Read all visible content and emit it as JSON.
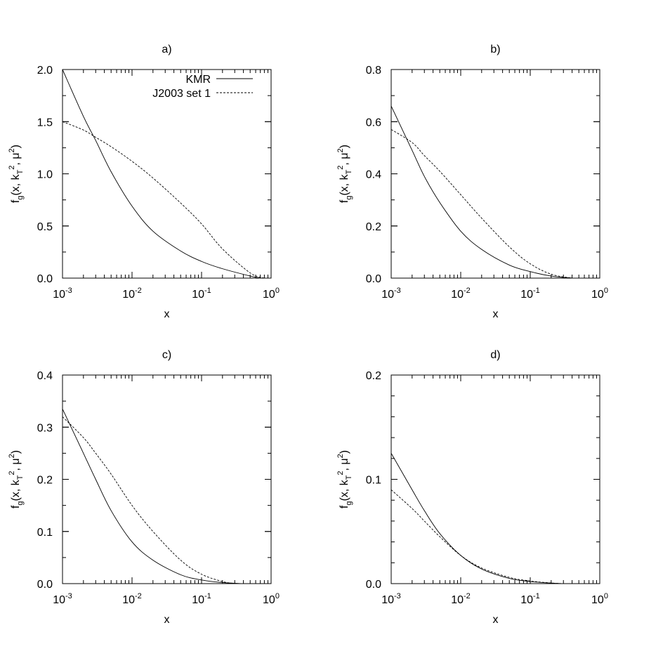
{
  "chart_data": [
    {
      "type": "line",
      "panel_label": "a)",
      "xlabel": "x",
      "ylabel": "f_g(x, k_T^2, μ^2)",
      "x_scale": "log",
      "xlim": [
        0.001,
        1
      ],
      "ylim": [
        0,
        2.0
      ],
      "y_ticks": [
        "0.0",
        "0.5",
        "1.0",
        "1.5",
        "2.0"
      ],
      "x_ticks": [
        "10^-3",
        "10^-2",
        "10^-1",
        "10^0"
      ],
      "legend": {
        "position": "top-right",
        "entries": [
          "KMR",
          "J2003 set 1"
        ]
      },
      "series": [
        {
          "name": "KMR",
          "style": "solid",
          "x": [
            0.001,
            0.002,
            0.003,
            0.005,
            0.01,
            0.02,
            0.05,
            0.1,
            0.2,
            0.5,
            0.7
          ],
          "y": [
            2.0,
            1.55,
            1.32,
            1.02,
            0.69,
            0.45,
            0.26,
            0.16,
            0.09,
            0.02,
            0.0
          ]
        },
        {
          "name": "J2003 set 1",
          "style": "dashed",
          "x": [
            0.001,
            0.002,
            0.003,
            0.005,
            0.01,
            0.02,
            0.05,
            0.1,
            0.2,
            0.5,
            0.8
          ],
          "y": [
            1.5,
            1.42,
            1.35,
            1.26,
            1.12,
            0.96,
            0.72,
            0.52,
            0.28,
            0.05,
            0.0
          ]
        }
      ]
    },
    {
      "type": "line",
      "panel_label": "b)",
      "xlabel": "x",
      "ylabel": "f_g(x, k_T^2, μ^2)",
      "x_scale": "log",
      "xlim": [
        0.001,
        1
      ],
      "ylim": [
        0,
        0.8
      ],
      "y_ticks": [
        "0.0",
        "0.2",
        "0.4",
        "0.6",
        "0.8"
      ],
      "x_ticks": [
        "10^-3",
        "10^-2",
        "10^-1",
        "10^0"
      ],
      "series": [
        {
          "name": "KMR",
          "style": "solid",
          "x": [
            0.001,
            0.002,
            0.003,
            0.005,
            0.01,
            0.02,
            0.05,
            0.1,
            0.2,
            0.4
          ],
          "y": [
            0.66,
            0.49,
            0.39,
            0.29,
            0.18,
            0.11,
            0.05,
            0.025,
            0.008,
            0.0
          ]
        },
        {
          "name": "J2003 set 1",
          "style": "dashed",
          "x": [
            0.001,
            0.002,
            0.003,
            0.005,
            0.01,
            0.02,
            0.05,
            0.1,
            0.2,
            0.4
          ],
          "y": [
            0.57,
            0.52,
            0.47,
            0.41,
            0.32,
            0.23,
            0.12,
            0.055,
            0.015,
            0.0
          ]
        }
      ]
    },
    {
      "type": "line",
      "panel_label": "c)",
      "xlabel": "x",
      "ylabel": "f_g(x, k_T^2, μ^2)",
      "x_scale": "log",
      "xlim": [
        0.001,
        1
      ],
      "ylim": [
        0,
        0.4
      ],
      "y_ticks": [
        "0.0",
        "0.1",
        "0.2",
        "0.3",
        "0.4"
      ],
      "x_ticks": [
        "10^-3",
        "10^-2",
        "10^-1",
        "10^0"
      ],
      "series": [
        {
          "name": "KMR",
          "style": "solid",
          "x": [
            0.001,
            0.002,
            0.003,
            0.005,
            0.01,
            0.02,
            0.05,
            0.1,
            0.2,
            0.4
          ],
          "y": [
            0.335,
            0.25,
            0.2,
            0.14,
            0.08,
            0.045,
            0.017,
            0.007,
            0.002,
            0.0
          ]
        },
        {
          "name": "J2003 set 1",
          "style": "dashed",
          "x": [
            0.001,
            0.002,
            0.003,
            0.005,
            0.01,
            0.02,
            0.05,
            0.1,
            0.2,
            0.3
          ],
          "y": [
            0.32,
            0.28,
            0.25,
            0.21,
            0.15,
            0.1,
            0.045,
            0.018,
            0.004,
            0.0
          ]
        }
      ]
    },
    {
      "type": "line",
      "panel_label": "d)",
      "xlabel": "x",
      "ylabel": "f_g(x, k_T^2, μ^2)",
      "x_scale": "log",
      "xlim": [
        0.001,
        1
      ],
      "ylim": [
        0,
        0.2
      ],
      "y_ticks": [
        "0.0",
        "0.1",
        "0.2"
      ],
      "x_ticks": [
        "10^-3",
        "10^-2",
        "10^-1",
        "10^0"
      ],
      "series": [
        {
          "name": "KMR",
          "style": "solid",
          "x": [
            0.001,
            0.002,
            0.003,
            0.005,
            0.01,
            0.02,
            0.05,
            0.1,
            0.2,
            0.3
          ],
          "y": [
            0.125,
            0.09,
            0.07,
            0.048,
            0.027,
            0.014,
            0.005,
            0.002,
            0.0005,
            0.0
          ]
        },
        {
          "name": "J2003 set 1",
          "style": "dashed",
          "x": [
            0.001,
            0.002,
            0.003,
            0.005,
            0.01,
            0.02,
            0.05,
            0.1,
            0.2,
            0.3
          ],
          "y": [
            0.09,
            0.072,
            0.06,
            0.045,
            0.027,
            0.015,
            0.006,
            0.0025,
            0.0006,
            0.0
          ]
        }
      ]
    }
  ]
}
